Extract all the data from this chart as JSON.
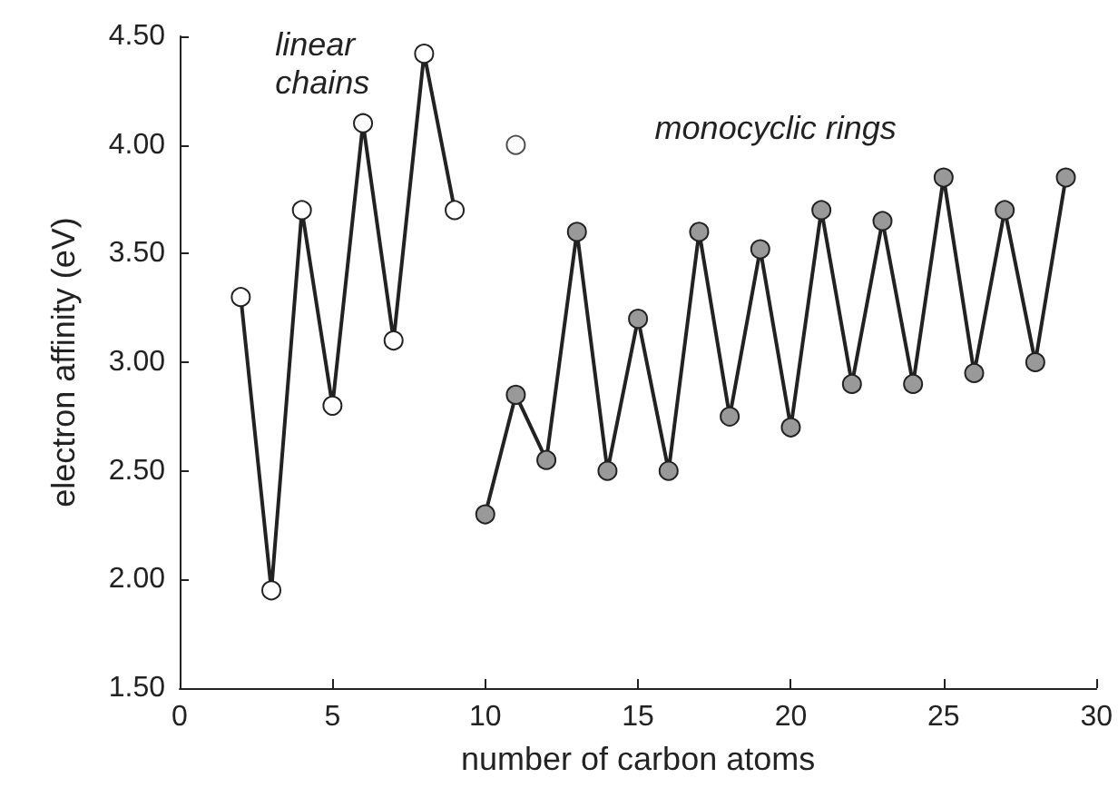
{
  "chart_data": {
    "type": "line",
    "xlabel": "number of carbon atoms",
    "ylabel": "electron affinity (eV)",
    "xlim": [
      0,
      30
    ],
    "xticks": [
      0,
      5,
      10,
      15,
      20,
      25,
      30
    ],
    "ylim": [
      1.5,
      4.5
    ],
    "yticks": [
      {
        "value": 1.5,
        "label": "1.50"
      },
      {
        "value": 2,
        "label": "2.00"
      },
      {
        "value": 2.5,
        "label": "2.50"
      },
      {
        "value": 3,
        "label": "3.00"
      },
      {
        "value": 3.5,
        "label": "3.50"
      },
      {
        "value": 4,
        "label": "4.00"
      },
      {
        "value": 4.5,
        "label": "4.50"
      }
    ],
    "grid": false,
    "legend": false,
    "marker": "circle",
    "line_style": "solid",
    "series": [
      {
        "name": "linear chains",
        "color": "#222222",
        "x": [
          2,
          3,
          4,
          5,
          6,
          7,
          8,
          9
        ],
        "values": [
          3.3,
          1.95,
          3.7,
          2.8,
          4.1,
          3.1,
          4.42,
          3.7
        ]
      },
      {
        "type": "scatter",
        "color": "#222222",
        "x": [
          11
        ],
        "values": [
          4.0
        ]
      },
      {
        "name": "monocyclic rings",
        "color": "#999999",
        "x": [
          10,
          11,
          12,
          13,
          14,
          15,
          16,
          17,
          18,
          19,
          20,
          21,
          22,
          23,
          24,
          25,
          26,
          27,
          28,
          29
        ],
        "values": [
          2.3,
          2.85,
          2.55,
          3.6,
          2.5,
          3.2,
          2.5,
          3.6,
          2.75,
          3.52,
          2.7,
          3.7,
          2.9,
          3.65,
          2.9,
          3.85,
          2.95,
          3.7,
          3.0,
          3.85
        ]
      }
    ]
  }
}
